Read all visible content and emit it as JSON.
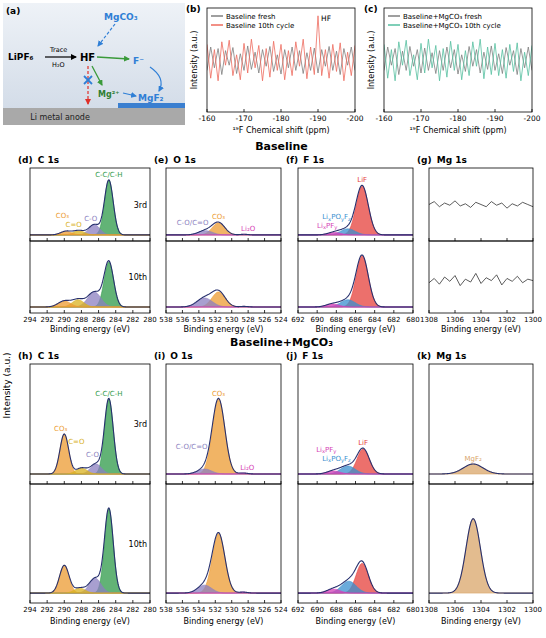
{
  "diagram": {
    "label": "(a)",
    "reactant": "LiPF₆",
    "condition_top": "Trace",
    "condition_bottom": "H₂O",
    "acid": "HF",
    "additive": "MgCO₃",
    "anion": "F⁻",
    "cation": "Mg²⁺",
    "product": "MgF₂",
    "electrode": "Li metal anode"
  },
  "figure": {
    "ylabel": "Intensity (a.u.)",
    "headings": [
      "Baseline",
      "Baseline+MgCO₃"
    ]
  },
  "chart_data": [
    {
      "type": "line",
      "panel": "(b)",
      "xlabel": "¹⁹F Chemical shift (ppm)",
      "ylabel": "Intensity (a.u.)",
      "x": [
        -160,
        -161,
        -162,
        -163,
        -164,
        -165,
        -166,
        -167,
        -168,
        -169,
        -170,
        -171,
        -172,
        -173,
        -174,
        -175,
        -176,
        -177,
        -178,
        -179,
        -180,
        -181,
        -182,
        -183,
        -184,
        -185,
        -186,
        -187,
        -188,
        -189,
        -190,
        -191,
        -192,
        -193,
        -194,
        -195,
        -196,
        -197,
        -198,
        -199,
        -200
      ],
      "xlim": [
        -160,
        -200
      ],
      "xticks": [
        -160,
        -170,
        -180,
        -190,
        -200
      ],
      "ylim": [
        -1,
        1
      ],
      "tick_labels": "x",
      "legend": "upper left",
      "series": [
        {
          "name": "Baseline fresh",
          "color": "#7f7f7f",
          "values": [
            -0.2,
            0.25,
            -0.15,
            0.22,
            -0.28,
            0.18,
            -0.1,
            0.24,
            -0.26,
            0.12,
            -0.2,
            0.27,
            -0.18,
            0.15,
            -0.25,
            0.2,
            -0.12,
            0.26,
            -0.22,
            0.1,
            -0.27,
            0.2,
            -0.15,
            0.25,
            -0.2,
            0.18,
            -0.26,
            0.14,
            -0.2,
            0.23,
            -0.25,
            0.2,
            -0.12,
            0.26,
            -0.2,
            0.17,
            -0.28,
            0.22,
            -0.1,
            0.25,
            -0.2
          ]
        },
        {
          "name": "Baseline 10th cycle",
          "color": "#ee6b5e",
          "values": [
            0.3,
            -0.35,
            0.2,
            -0.4,
            0.35,
            -0.1,
            0.38,
            -0.3,
            0.1,
            -0.38,
            0.32,
            -0.25,
            0.4,
            -0.15,
            0.28,
            -0.4,
            0.22,
            -0.33,
            0.36,
            -0.2,
            0.3,
            -0.38,
            0.18,
            -0.3,
            0.35,
            -0.12,
            0.4,
            -0.36,
            0.25,
            -0.28,
            0.85,
            -0.3,
            0.2,
            -0.35,
            0.3,
            -0.22,
            0.33,
            -0.4,
            0.15,
            -0.3,
            0.28
          ]
        }
      ],
      "annotations": [
        {
          "text": "HF",
          "x": -190,
          "y": 0.85
        }
      ]
    },
    {
      "type": "line",
      "panel": "(c)",
      "xlabel": "¹⁹F Chemical shift (ppm)",
      "ylabel": "Intensity (a.u.)",
      "x": [
        -160,
        -161,
        -162,
        -163,
        -164,
        -165,
        -166,
        -167,
        -168,
        -169,
        -170,
        -171,
        -172,
        -173,
        -174,
        -175,
        -176,
        -177,
        -178,
        -179,
        -180,
        -181,
        -182,
        -183,
        -184,
        -185,
        -186,
        -187,
        -188,
        -189,
        -190,
        -191,
        -192,
        -193,
        -194,
        -195,
        -196,
        -197,
        -198,
        -199,
        -200
      ],
      "xlim": [
        -160,
        -200
      ],
      "xticks": [
        -160,
        -170,
        -180,
        -190,
        -200
      ],
      "ylim": [
        -1,
        1
      ],
      "tick_labels": "x",
      "legend": "upper left",
      "series": [
        {
          "name": "Baseline+MgCO₃ fresh",
          "color": "#7f7f7f",
          "values": [
            -0.2,
            0.25,
            -0.1,
            0.22,
            -0.28,
            0.17,
            -0.2,
            0.26,
            -0.12,
            0.2,
            -0.25,
            0.23,
            -0.2,
            0.14,
            -0.26,
            0.18,
            -0.2,
            0.25,
            -0.15,
            0.2,
            -0.27,
            0.1,
            -0.22,
            0.26,
            -0.12,
            0.2,
            -0.25,
            0.15,
            -0.18,
            0.27,
            -0.2,
            0.12,
            -0.26,
            0.24,
            -0.1,
            0.18,
            -0.28,
            0.22,
            -0.15,
            0.25,
            -0.2
          ]
        },
        {
          "name": "Baseline+MgCO₃ 10th cycle",
          "color": "#55bfa0",
          "values": [
            0.3,
            -0.35,
            0.2,
            -0.4,
            0.35,
            -0.1,
            0.38,
            -0.3,
            0.1,
            -0.38,
            0.32,
            -0.25,
            0.4,
            -0.15,
            0.28,
            -0.4,
            0.22,
            -0.33,
            0.36,
            -0.2,
            0.3,
            -0.38,
            0.18,
            -0.3,
            0.35,
            -0.12,
            0.4,
            -0.36,
            0.25,
            -0.28,
            0.32,
            -0.3,
            0.2,
            -0.35,
            0.3,
            -0.22,
            0.33,
            -0.4,
            0.15,
            -0.3,
            0.28
          ]
        }
      ]
    },
    {
      "type": "xps",
      "panel": "(d)",
      "title": "C 1s",
      "xlabel": "Binding energy (eV)",
      "xlim": [
        294,
        280
      ],
      "xticks": [
        294,
        292,
        290,
        288,
        286,
        284,
        282,
        280
      ],
      "ylim": [
        -0.1,
        1.1
      ],
      "tick_labels": "x",
      "subplot_labels": [
        "3rd",
        "10th"
      ],
      "series": [
        {
          "name": "CO₃",
          "color": "#ec9b32",
          "center": [
            289.8,
            290.0
          ],
          "values": [
            0.06,
            0.1
          ],
          "fwhm": [
            1.5,
            1.7
          ]
        },
        {
          "name": "C=O",
          "color": "#d9b21f",
          "center": [
            288.3,
            288.4
          ],
          "values": [
            0.07,
            0.12
          ],
          "fwhm": [
            1.5,
            1.6
          ]
        },
        {
          "name": "C-O",
          "color": "#8b7fc0",
          "center": [
            286.5,
            286.5
          ],
          "values": [
            0.17,
            0.25
          ],
          "fwhm": [
            1.5,
            1.8
          ]
        },
        {
          "name": "C-C/C-H",
          "color": "#2e9a48",
          "center": [
            284.8,
            284.8
          ],
          "values": [
            0.9,
            0.75
          ],
          "fwhm": [
            1.2,
            1.3
          ]
        }
      ]
    },
    {
      "type": "xps",
      "panel": "(e)",
      "title": "O 1s",
      "xlabel": "Binding energy (eV)",
      "xlim": [
        538,
        524
      ],
      "xticks": [
        538,
        536,
        534,
        532,
        530,
        528,
        526,
        524
      ],
      "ylim": [
        -0.1,
        1.1
      ],
      "tick_labels": "x",
      "series": [
        {
          "name": "C-O/C=O",
          "color": "#8b7fc0",
          "center": [
            533.2,
            533.3
          ],
          "values": [
            0.07,
            0.15
          ],
          "fwhm": [
            2.0,
            2.2
          ]
        },
        {
          "name": "CO₃",
          "color": "#ec9b32",
          "center": [
            531.6,
            531.6
          ],
          "values": [
            0.2,
            0.25
          ],
          "fwhm": [
            1.8,
            1.9
          ]
        },
        {
          "name": "Li₂O",
          "color": "#d63fb5",
          "center": [
            528.5,
            528.5
          ],
          "values": [
            0.01,
            0.01
          ],
          "fwhm": [
            1.2,
            1.2
          ]
        }
      ]
    },
    {
      "type": "xps",
      "panel": "(f)",
      "title": "F 1s",
      "xlabel": "Binding energy (eV)",
      "xlim": [
        692,
        680
      ],
      "xticks": [
        692,
        690,
        688,
        686,
        684,
        682,
        680
      ],
      "ylim": [
        -0.1,
        1.1
      ],
      "tick_labels": "x",
      "series": [
        {
          "name": "LixPFy",
          "color": "#d63fb5",
          "center": [
            688.2,
            688.4
          ],
          "values": [
            0.04,
            0.05
          ],
          "fwhm": [
            1.6,
            1.6
          ]
        },
        {
          "name": "LixPOyFz",
          "color": "#3a8fcf",
          "center": [
            686.8,
            686.8
          ],
          "values": [
            0.1,
            0.12
          ],
          "fwhm": [
            1.8,
            1.8
          ]
        },
        {
          "name": "LiF",
          "color": "#e5403b",
          "center": [
            685.3,
            685.3
          ],
          "values": [
            0.8,
            0.85
          ],
          "fwhm": [
            1.5,
            1.5
          ]
        }
      ]
    },
    {
      "type": "xps",
      "panel": "(g)",
      "title": "Mg 1s",
      "xlabel": "Binding energy (eV)",
      "xlim": [
        1308,
        1300
      ],
      "xticks": [
        1308,
        1306,
        1304,
        1302,
        1300
      ],
      "ylim": [
        0,
        1
      ],
      "tick_labels": "x",
      "x": [
        1308,
        1307.6,
        1307.2,
        1306.8,
        1306.4,
        1306,
        1305.6,
        1305.2,
        1304.8,
        1304.4,
        1304,
        1303.6,
        1303.2,
        1302.8,
        1302.4,
        1302,
        1301.6,
        1301.2,
        1300.8,
        1300.4,
        1300
      ],
      "traces": [
        {
          "values": [
            0.5,
            0.54,
            0.47,
            0.52,
            0.49,
            0.55,
            0.48,
            0.51,
            0.46,
            0.53,
            0.5,
            0.47,
            0.54,
            0.49,
            0.52,
            0.45,
            0.51,
            0.48,
            0.53,
            0.5,
            0.47
          ]
        },
        {
          "values": [
            0.42,
            0.48,
            0.4,
            0.5,
            0.44,
            0.52,
            0.38,
            0.47,
            0.43,
            0.55,
            0.41,
            0.49,
            0.45,
            0.53,
            0.39,
            0.48,
            0.44,
            0.51,
            0.42,
            0.47,
            0.45
          ]
        }
      ]
    },
    {
      "type": "xps",
      "panel": "(h)",
      "title": "C 1s",
      "xlabel": "Binding energy (eV)",
      "xlim": [
        294,
        280
      ],
      "xticks": [
        294,
        292,
        290,
        288,
        286,
        284,
        282,
        280
      ],
      "ylim": [
        -0.1,
        1.1
      ],
      "tick_labels": "x",
      "subplot_labels": [
        "3rd",
        "10th"
      ],
      "series": [
        {
          "name": "CO₃",
          "color": "#ec9b32",
          "center": [
            290.0,
            290.0
          ],
          "values": [
            0.4,
            0.28
          ],
          "fwhm": [
            1.2,
            1.3
          ]
        },
        {
          "name": "C=O",
          "color": "#d9b21f",
          "center": [
            288.0,
            288.2
          ],
          "values": [
            0.06,
            0.05
          ],
          "fwhm": [
            1.5,
            1.5
          ]
        },
        {
          "name": "C-O",
          "color": "#8b7fc0",
          "center": [
            286.3,
            286.4
          ],
          "values": [
            0.1,
            0.15
          ],
          "fwhm": [
            1.5,
            1.6
          ]
        },
        {
          "name": "C-C/C-H",
          "color": "#2e9a48",
          "center": [
            284.8,
            284.8
          ],
          "values": [
            0.75,
            0.85
          ],
          "fwhm": [
            1.2,
            1.2
          ]
        }
      ]
    },
    {
      "type": "xps",
      "panel": "(i)",
      "title": "O 1s",
      "xlabel": "Binding energy (eV)",
      "xlim": [
        538,
        524
      ],
      "xticks": [
        538,
        536,
        534,
        532,
        530,
        528,
        526,
        524
      ],
      "ylim": [
        -0.1,
        1.1
      ],
      "tick_labels": "x",
      "series": [
        {
          "name": "C-O/C=O",
          "color": "#8b7fc0",
          "center": [
            533.3,
            533.3
          ],
          "values": [
            0.05,
            0.08
          ],
          "fwhm": [
            2.0,
            2.0
          ]
        },
        {
          "name": "CO₃",
          "color": "#ec9b32",
          "center": [
            531.6,
            531.6
          ],
          "values": [
            0.75,
            0.6
          ],
          "fwhm": [
            1.8,
            1.8
          ]
        },
        {
          "name": "Li₂O",
          "color": "#d63fb5",
          "center": [
            528.6,
            528.6
          ],
          "values": [
            0.01,
            0.01
          ],
          "fwhm": [
            1.2,
            1.2
          ]
        }
      ]
    },
    {
      "type": "xps",
      "panel": "(j)",
      "title": "F 1s",
      "xlabel": "Binding energy (eV)",
      "xlim": [
        692,
        680
      ],
      "xticks": [
        692,
        690,
        688,
        686,
        684,
        682,
        680
      ],
      "ylim": [
        -0.1,
        1.1
      ],
      "tick_labels": "x",
      "series": [
        {
          "name": "LixPFy",
          "color": "#d63fb5",
          "center": [
            688.3,
            688.3
          ],
          "values": [
            0.03,
            0.04
          ],
          "fwhm": [
            1.6,
            1.6
          ]
        },
        {
          "name": "LixPOyFz",
          "color": "#3a8fcf",
          "center": [
            686.8,
            686.7
          ],
          "values": [
            0.08,
            0.12
          ],
          "fwhm": [
            1.8,
            1.8
          ]
        },
        {
          "name": "LiF",
          "color": "#e5403b",
          "center": [
            685.2,
            685.3
          ],
          "values": [
            0.25,
            0.3
          ],
          "fwhm": [
            1.5,
            1.5
          ]
        }
      ]
    },
    {
      "type": "xps",
      "panel": "(k)",
      "title": "Mg 1s",
      "xlabel": "Binding energy (eV)",
      "xlim": [
        1308,
        1300
      ],
      "xticks": [
        1308,
        1306,
        1304,
        1302,
        1300
      ],
      "ylim": [
        -0.1,
        1.1
      ],
      "tick_labels": "x",
      "series": [
        {
          "name": "MgF₂",
          "color": "#d9a56a",
          "center": [
            1304.6,
            1304.6
          ],
          "values": [
            0.1,
            0.75
          ],
          "fwhm": [
            1.8,
            1.3
          ]
        }
      ]
    }
  ]
}
